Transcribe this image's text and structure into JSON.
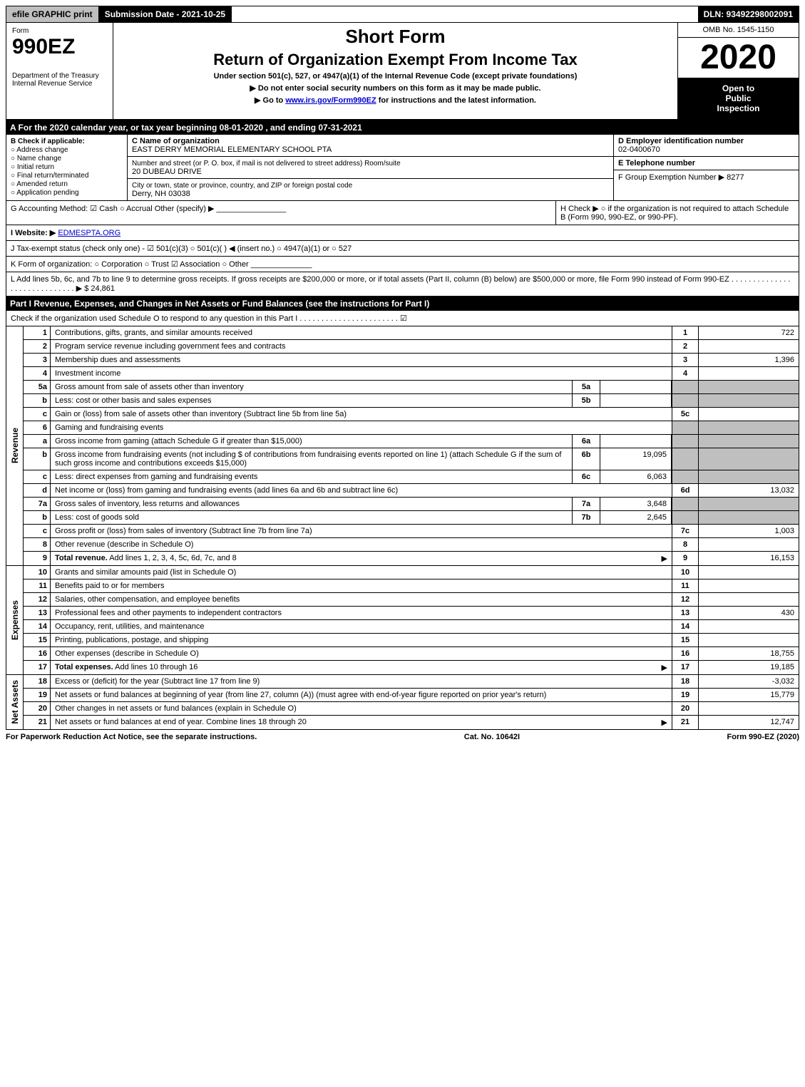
{
  "topbar": {
    "efile": "efile GRAPHIC print",
    "submission": "Submission Date - 2021-10-25",
    "dln": "DLN: 93492298002091"
  },
  "header": {
    "form_word": "Form",
    "form_no": "990EZ",
    "short_form": "Short Form",
    "title": "Return of Organization Exempt From Income Tax",
    "subtitle": "Under section 501(c), 527, or 4947(a)(1) of the Internal Revenue Code (except private foundations)",
    "notice1": "▶ Do not enter social security numbers on this form as it may be made public.",
    "notice2_pre": "▶ Go to ",
    "notice2_link": "www.irs.gov/Form990EZ",
    "notice2_post": " for instructions and the latest information.",
    "dept": "Department of the Treasury\nInternal Revenue Service",
    "omb": "OMB No. 1545-1150",
    "year": "2020",
    "inspection": "Open to\nPublic\nInspection"
  },
  "period": "A For the 2020 calendar year, or tax year beginning 08-01-2020 , and ending 07-31-2021",
  "boxB": {
    "label": "B  Check if applicable:",
    "opts": [
      "Address change",
      "Name change",
      "Initial return",
      "Final return/terminated",
      "Amended return",
      "Application pending"
    ]
  },
  "boxC": {
    "label": "C Name of organization",
    "name": "EAST DERRY MEMORIAL ELEMENTARY SCHOOL PTA",
    "street_label": "Number and street (or P. O. box, if mail is not delivered to street address)       Room/suite",
    "street": "20 DUBEAU DRIVE",
    "city_label": "City or town, state or province, country, and ZIP or foreign postal code",
    "city": "Derry, NH  03038"
  },
  "boxD": {
    "label": "D Employer identification number",
    "val": "02-0400670"
  },
  "boxE": {
    "label": "E Telephone number",
    "val": ""
  },
  "boxF": {
    "label": "F Group Exemption Number   ▶ 8277"
  },
  "rowG": "G Accounting Method:   ☑ Cash  ○ Accrual   Other (specify) ▶ ________________",
  "rowH": "H  Check ▶  ○  if the organization is not required to attach Schedule B (Form 990, 990-EZ, or 990-PF).",
  "rowI_pre": "I Website: ▶",
  "rowI_link": "EDMESPTA.ORG",
  "rowJ": "J Tax-exempt status (check only one) - ☑ 501(c)(3) ○ 501(c)(  ) ◀ (insert no.) ○ 4947(a)(1) or ○ 527",
  "rowK": "K Form of organization:   ○ Corporation   ○ Trust   ☑ Association   ○ Other  ______________",
  "rowL": "L Add lines 5b, 6c, and 7b to line 9 to determine gross receipts. If gross receipts are $200,000 or more, or if total assets (Part II, column (B) below) are $500,000 or more, file Form 990 instead of Form 990-EZ  .   .   .   .   .   .   .   .   .   .   .   .   .   .   .   .   .   .   .   .   .   .   .   .   .   .   .   .   .   ▶ $ 24,861",
  "part1": {
    "bar": "Part I        Revenue, Expenses, and Changes in Net Assets or Fund Balances (see the instructions for Part I)",
    "check": "Check if the organization used Schedule O to respond to any question in this Part I  .   .   .   .   .   .   .   .   .   .   .   .   .   .   .   .   .   .   .   .   .   .   .   ☑"
  },
  "sections": {
    "revenue": "Revenue",
    "expenses": "Expenses",
    "netassets": "Net Assets"
  },
  "lines": {
    "l1": {
      "n": "1",
      "d": "Contributions, gifts, grants, and similar amounts received",
      "c": "1",
      "v": "722"
    },
    "l2": {
      "n": "2",
      "d": "Program service revenue including government fees and contracts",
      "c": "2",
      "v": ""
    },
    "l3": {
      "n": "3",
      "d": "Membership dues and assessments",
      "c": "3",
      "v": "1,396"
    },
    "l4": {
      "n": "4",
      "d": "Investment income",
      "c": "4",
      "v": ""
    },
    "l5a": {
      "n": "5a",
      "d": "Gross amount from sale of assets other than inventory",
      "sub": "5a",
      "sv": ""
    },
    "l5b": {
      "n": "b",
      "d": "Less: cost or other basis and sales expenses",
      "sub": "5b",
      "sv": ""
    },
    "l5c": {
      "n": "c",
      "d": "Gain or (loss) from sale of assets other than inventory (Subtract line 5b from line 5a)",
      "c": "5c",
      "v": ""
    },
    "l6": {
      "n": "6",
      "d": "Gaming and fundraising events"
    },
    "l6a": {
      "n": "a",
      "d": "Gross income from gaming (attach Schedule G if greater than $15,000)",
      "sub": "6a",
      "sv": ""
    },
    "l6b": {
      "n": "b",
      "d": "Gross income from fundraising events (not including $                  of contributions from fundraising events reported on line 1) (attach Schedule G if the sum of such gross income and contributions exceeds $15,000)",
      "sub": "6b",
      "sv": "19,095"
    },
    "l6c": {
      "n": "c",
      "d": "Less: direct expenses from gaming and fundraising events",
      "sub": "6c",
      "sv": "6,063"
    },
    "l6d": {
      "n": "d",
      "d": "Net income or (loss) from gaming and fundraising events (add lines 6a and 6b and subtract line 6c)",
      "c": "6d",
      "v": "13,032"
    },
    "l7a": {
      "n": "7a",
      "d": "Gross sales of inventory, less returns and allowances",
      "sub": "7a",
      "sv": "3,648"
    },
    "l7b": {
      "n": "b",
      "d": "Less: cost of goods sold",
      "sub": "7b",
      "sv": "2,645"
    },
    "l7c": {
      "n": "c",
      "d": "Gross profit or (loss) from sales of inventory (Subtract line 7b from line 7a)",
      "c": "7c",
      "v": "1,003"
    },
    "l8": {
      "n": "8",
      "d": "Other revenue (describe in Schedule O)",
      "c": "8",
      "v": ""
    },
    "l9": {
      "n": "9",
      "d": "Total revenue. Add lines 1, 2, 3, 4, 5c, 6d, 7c, and 8",
      "c": "9",
      "v": "16,153",
      "arrow": "▶"
    },
    "l10": {
      "n": "10",
      "d": "Grants and similar amounts paid (list in Schedule O)",
      "c": "10",
      "v": ""
    },
    "l11": {
      "n": "11",
      "d": "Benefits paid to or for members",
      "c": "11",
      "v": ""
    },
    "l12": {
      "n": "12",
      "d": "Salaries, other compensation, and employee benefits",
      "c": "12",
      "v": ""
    },
    "l13": {
      "n": "13",
      "d": "Professional fees and other payments to independent contractors",
      "c": "13",
      "v": "430"
    },
    "l14": {
      "n": "14",
      "d": "Occupancy, rent, utilities, and maintenance",
      "c": "14",
      "v": ""
    },
    "l15": {
      "n": "15",
      "d": "Printing, publications, postage, and shipping",
      "c": "15",
      "v": ""
    },
    "l16": {
      "n": "16",
      "d": "Other expenses (describe in Schedule O)",
      "c": "16",
      "v": "18,755"
    },
    "l17": {
      "n": "17",
      "d": "Total expenses. Add lines 10 through 16",
      "c": "17",
      "v": "19,185",
      "arrow": "▶"
    },
    "l18": {
      "n": "18",
      "d": "Excess or (deficit) for the year (Subtract line 17 from line 9)",
      "c": "18",
      "v": "-3,032"
    },
    "l19": {
      "n": "19",
      "d": "Net assets or fund balances at beginning of year (from line 27, column (A)) (must agree with end-of-year figure reported on prior year's return)",
      "c": "19",
      "v": "15,779"
    },
    "l20": {
      "n": "20",
      "d": "Other changes in net assets or fund balances (explain in Schedule O)",
      "c": "20",
      "v": ""
    },
    "l21": {
      "n": "21",
      "d": "Net assets or fund balances at end of year. Combine lines 18 through 20",
      "c": "21",
      "v": "12,747",
      "arrow": "▶"
    }
  },
  "footer": {
    "left": "For Paperwork Reduction Act Notice, see the separate instructions.",
    "mid": "Cat. No. 10642I",
    "right": "Form 990-EZ (2020)"
  }
}
